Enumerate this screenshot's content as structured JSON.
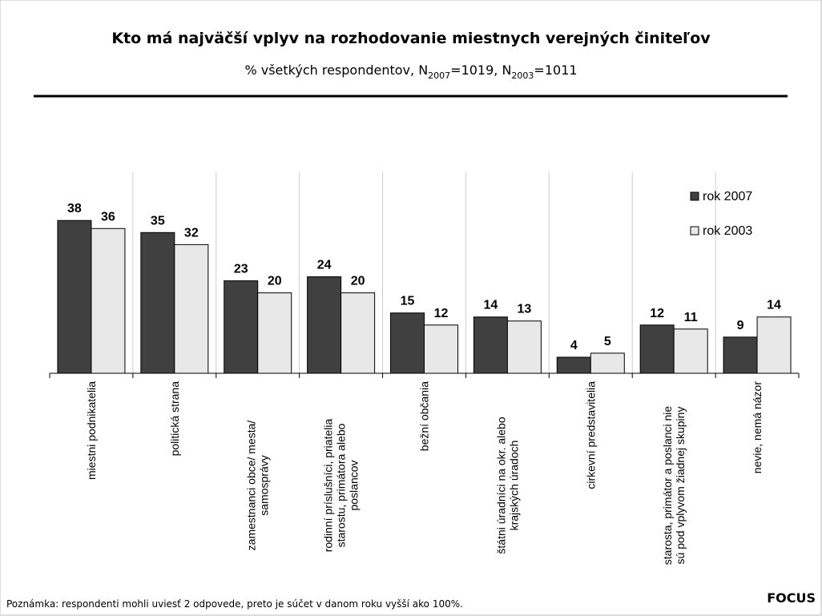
{
  "chart_data": {
    "type": "bar",
    "title": "Kto má najväčší vplyv na rozhodovanie miestnych verejných činiteľov",
    "subtitle": [
      "% všetkých respondentov, N",
      "2007",
      "=1019, N",
      "2003",
      "=1011"
    ],
    "categories": [
      [
        "miestni podnikatelia"
      ],
      [
        "politická strana"
      ],
      [
        "zamestnanci obce/ mesta/",
        "samosprávy"
      ],
      [
        "rodinní príslušníci, priatelia",
        "starostu, primátora alebo",
        "poslancov"
      ],
      [
        "bežní občania"
      ],
      [
        "štátni úradníci na okr. alebo",
        "krajských úradoch"
      ],
      [
        "cirkevní predstavitelia"
      ],
      [
        "starosta, primátor a poslanci nie",
        "sú pod vplyvom žiadnej skupiny"
      ],
      [
        "nevie, nemá názor"
      ]
    ],
    "series": [
      {
        "name": "rok 2007",
        "color": "#404040",
        "values": [
          38,
          35,
          23,
          24,
          15,
          14,
          4,
          12,
          9
        ]
      },
      {
        "name": "rok 2003",
        "color": "#e8e8e8",
        "values": [
          36,
          32,
          20,
          20,
          12,
          13,
          5,
          11,
          14
        ]
      }
    ],
    "ylim": [
      0,
      50
    ],
    "legend": "upper right",
    "note": "Poznámka: respondenti mohli uviesť 2 odpovede, preto je súčet v danom roku vyšší ako 100%.",
    "source": "FOCUS"
  }
}
